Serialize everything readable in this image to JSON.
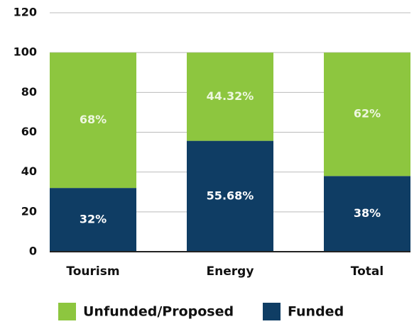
{
  "chart_data": {
    "type": "stacked_bar",
    "categories": [
      "Tourism",
      "Energy",
      "Total"
    ],
    "series": [
      {
        "name": "Funded",
        "color": "#0f3d64",
        "values": [
          32,
          55.68,
          38
        ],
        "value_labels": [
          "32%",
          "55.68%",
          "38%"
        ]
      },
      {
        "name": "Unfunded/Proposed",
        "color": "#8dc63f",
        "values": [
          68,
          44.32,
          62
        ],
        "value_labels": [
          "68%",
          "44.32%",
          "62%"
        ]
      }
    ],
    "ylim": [
      0,
      120
    ],
    "yticks": [
      0,
      20,
      40,
      60,
      80,
      100,
      120
    ],
    "grid": true
  }
}
